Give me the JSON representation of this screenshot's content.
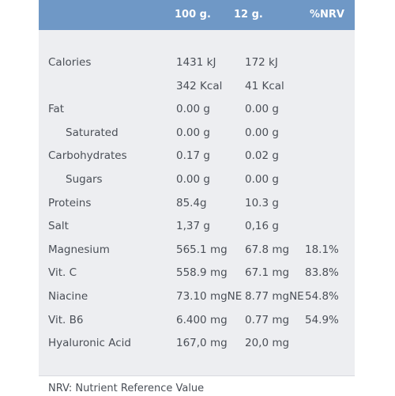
{
  "header": {
    "col_100g": "100 g.",
    "col_12g": "12 g.",
    "col_nrv": "%NRV"
  },
  "rows": [
    {
      "label": "Calories",
      "indent": false,
      "v100": "1431 kJ",
      "v12": "172 kJ",
      "nrv": ""
    },
    {
      "label": "",
      "indent": false,
      "v100": "342 Kcal",
      "v12": "41 Kcal",
      "nrv": ""
    },
    {
      "label": "Fat",
      "indent": false,
      "v100": "0.00 g",
      "v12": "0.00 g",
      "nrv": ""
    },
    {
      "label": "Saturated",
      "indent": true,
      "v100": "0.00 g",
      "v12": "0.00 g",
      "nrv": ""
    },
    {
      "label": "Carbohydrates",
      "indent": false,
      "v100": "0.17 g",
      "v12": "0.02 g",
      "nrv": ""
    },
    {
      "label": "Sugars",
      "indent": true,
      "v100": "0.00 g",
      "v12": "0.00 g",
      "nrv": ""
    },
    {
      "label": "Proteins",
      "indent": false,
      "v100": "85.4g",
      "v12": "10.3 g",
      "nrv": ""
    },
    {
      "label": "Salt",
      "indent": false,
      "v100": "1,37 g",
      "v12": "0,16 g",
      "nrv": ""
    },
    {
      "label": "Magnesium",
      "indent": false,
      "v100": "565.1 mg",
      "v12": "67.8 mg",
      "nrv": "18.1%"
    },
    {
      "label": "Vit. C",
      "indent": false,
      "v100": "558.9 mg",
      "v12": "67.1 mg",
      "nrv": "83.8%"
    },
    {
      "label": "Niacine",
      "indent": false,
      "v100": "73.10 mgNE",
      "v12": "8.77 mgNE",
      "nrv": "54.8%"
    },
    {
      "label": "Vit. B6",
      "indent": false,
      "v100": "6.400 mg",
      "v12": "0.77 mg",
      "nrv": "54.9%"
    },
    {
      "label": "Hyaluronic Acid",
      "indent": false,
      "v100": "167,0 mg",
      "v12": "20,0 mg",
      "nrv": ""
    }
  ],
  "footnote": "NRV: Nutrient Reference Value",
  "colors": {
    "header_bg": "#6f98c6",
    "panel_bg": "#edeef1",
    "text": "#4a4f57"
  }
}
